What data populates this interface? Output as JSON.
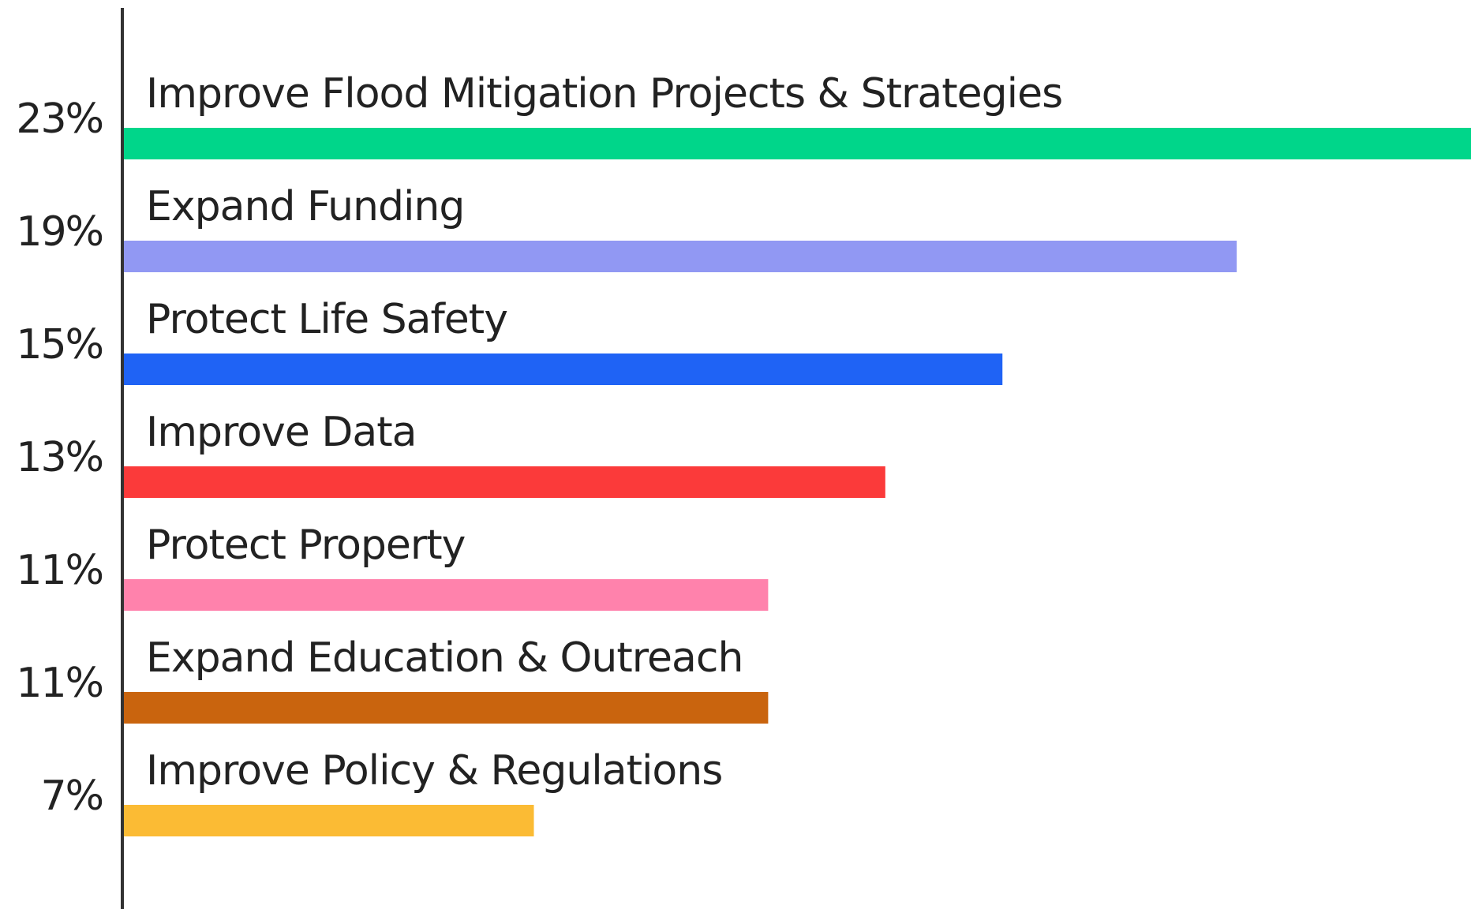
{
  "chart_data": {
    "type": "bar",
    "orientation": "horizontal",
    "categories": [
      "Improve Flood Mitigation Projects & Strategies",
      "Expand Funding",
      "Protect Life Safety",
      "Improve Data",
      "Protect Property",
      "Expand Education & Outreach",
      "Improve Policy & Regulations"
    ],
    "values": [
      23,
      19,
      15,
      13,
      11,
      11,
      7
    ],
    "value_labels": [
      "23%",
      "19%",
      "15%",
      "13%",
      "11%",
      "11%",
      "7%"
    ],
    "colors": [
      "#00d68a",
      "#9198f3",
      "#1f63f5",
      "#fb3a3a",
      "#ff82ac",
      "#c9640e",
      "#fbbb34"
    ]
  }
}
